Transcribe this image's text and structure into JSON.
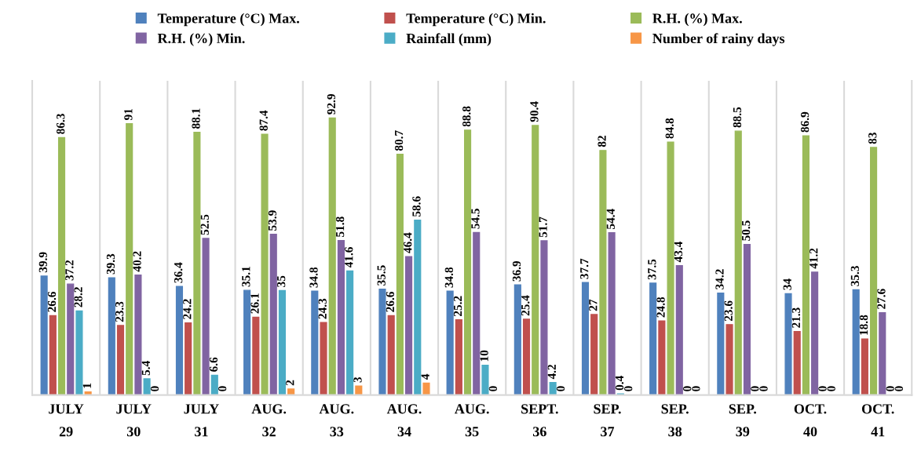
{
  "chart_data": {
    "type": "bar",
    "categories": [
      "JULY\n29",
      "JULY\n30",
      "JULY\n31",
      "AUG.\n32",
      "AUG.\n33",
      "AUG.\n34",
      "AUG.\n35",
      "SEPT.\n36",
      "SEP.\n37",
      "SEP.\n38",
      "SEP.\n39",
      "OCT.\n40",
      "OCT.\n41"
    ],
    "series": [
      {
        "name": "Temperature (°C) Max.",
        "color": "#4f81bd",
        "values": [
          39.9,
          39.3,
          36.4,
          35.1,
          34.8,
          35.5,
          34.8,
          36.9,
          37.7,
          37.5,
          34.2,
          34,
          35.3
        ]
      },
      {
        "name": "Temperature (°C) Min.",
        "color": "#c0504d",
        "values": [
          26.6,
          23.3,
          24.2,
          26.1,
          24.3,
          26.6,
          25.2,
          25.4,
          27,
          24.8,
          23.6,
          21.3,
          18.8
        ]
      },
      {
        "name": "R.H. (%) Max.",
        "color": "#9bbb59",
        "values": [
          86.3,
          91,
          88.1,
          87.4,
          92.9,
          80.7,
          88.8,
          90.4,
          82,
          84.8,
          88.5,
          86.9,
          83
        ]
      },
      {
        "name": "R.H. (%) Min.",
        "color": "#8064a2",
        "values": [
          37.2,
          40.2,
          52.5,
          53.9,
          51.8,
          46.4,
          54.5,
          51.7,
          54.4,
          43.4,
          50.5,
          41.2,
          27.6
        ]
      },
      {
        "name": "Rainfall (mm)",
        "color": "#4bacc6",
        "values": [
          28.2,
          5.4,
          6.6,
          35,
          41.6,
          58.6,
          10,
          4.2,
          0.4,
          0,
          0,
          0,
          0
        ]
      },
      {
        "name": "Number of rainy days",
        "color": "#f79646",
        "values": [
          1,
          0,
          0,
          2,
          3,
          4,
          0,
          0,
          0,
          0,
          0,
          0,
          0
        ]
      }
    ],
    "data_labels": true,
    "legend": "top"
  }
}
